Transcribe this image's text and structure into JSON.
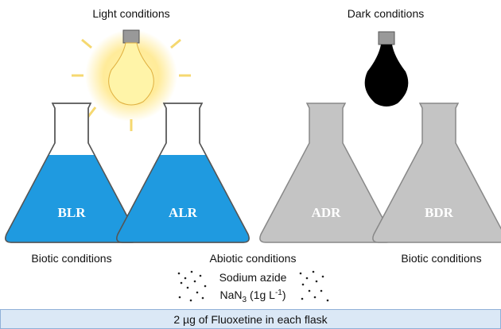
{
  "light": {
    "title": "Light conditions"
  },
  "dark": {
    "title": "Dark conditions"
  },
  "flasks": [
    {
      "label": "BLR",
      "condition": "Biotic conditions"
    },
    {
      "label": "ALR",
      "condition": "Abiotic conditions"
    },
    {
      "label": "ADR"
    },
    {
      "label": "BDR",
      "condition": "Biotic conditions"
    }
  ],
  "reagent": {
    "name": "Sodium azide",
    "formula": {
      "base": "NaN",
      "subscript": "3"
    },
    "amount": {
      "text": "(1g L",
      "superscript": "-1",
      "close": ")"
    }
  },
  "footer": "2 µg of Fluoxetine in each flask"
}
